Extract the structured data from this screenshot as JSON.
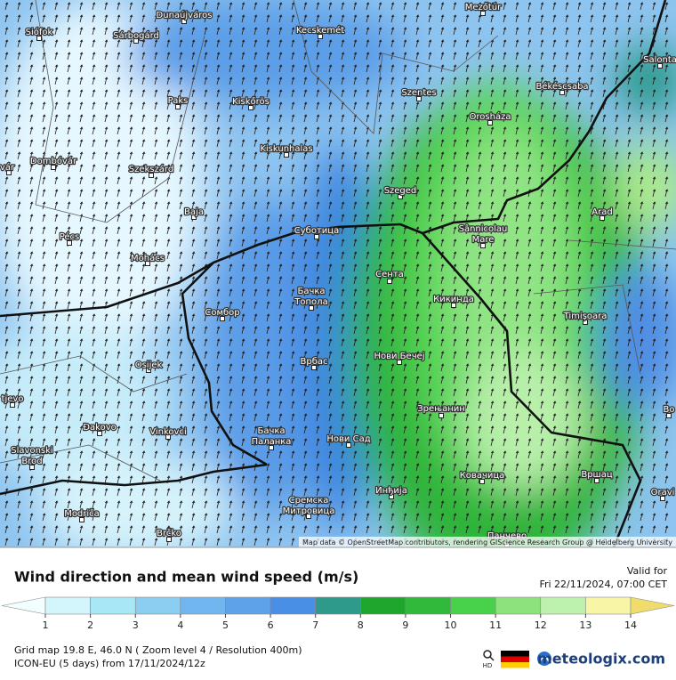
{
  "map": {
    "cities": [
      [
        "Dunaújváros"
      ],
      [
        "Mezőtúr"
      ],
      [
        "Siófok"
      ],
      [
        "Sárbogárd"
      ],
      [
        "Kecskemét"
      ],
      [
        "Salonta"
      ],
      [
        "Békéscsaba"
      ],
      [
        "Szentes"
      ],
      [
        "Paks"
      ],
      [
        "Kiskőrös"
      ],
      [
        "Orosháza"
      ],
      [
        "Kiskunhalas"
      ],
      [
        "Dombóvár"
      ],
      [
        "Szekszárd"
      ],
      [
        "vár"
      ],
      [
        "Szeged"
      ],
      [
        "Arad"
      ],
      [
        "Baja"
      ],
      [
        "Суботица"
      ],
      [
        "Sânnicolau",
        "Mare"
      ],
      [
        "Pécs"
      ],
      [
        "Mohács"
      ],
      [
        "Сента"
      ],
      [
        "Бачка",
        "Топола"
      ],
      [
        "Кикинда"
      ],
      [
        "Сомбор"
      ],
      [
        "Timișoara"
      ],
      [
        "Врбас"
      ],
      [
        "Нови Бечеј"
      ],
      [
        "Osijek"
      ],
      [
        "tjevo"
      ],
      [
        "Зрењанин"
      ],
      [
        "Bo"
      ],
      [
        "Đakovo"
      ],
      [
        "Vinkovci"
      ],
      [
        "Бачка",
        "Паланка"
      ],
      [
        "Нови Сад"
      ],
      [
        "Slavonski",
        "Brod"
      ],
      [
        "Ковачица"
      ],
      [
        "Вршац"
      ],
      [
        "Инђија"
      ],
      [
        "Oravi"
      ],
      [
        "Сремска",
        "Митровица"
      ],
      [
        "Modriča"
      ],
      [
        "Brčko"
      ],
      [
        "Панчево"
      ]
    ],
    "attribution": "Map data © OpenStreetMap contributors, rendering GIScience Research Group @ Heidelberg University"
  },
  "footer": {
    "title": "Wind direction and mean wind speed (m/s)",
    "valid_label": "Valid for",
    "valid_time": "Fri 22/11/2024, 07:00 CET",
    "legend": {
      "ticks": [
        1,
        2,
        3,
        4,
        5,
        6,
        7,
        8,
        9,
        10,
        11,
        12,
        13,
        14
      ],
      "colors": [
        "#f2feff",
        "#d2f6fb",
        "#a8e8f6",
        "#8ccdf2",
        "#72b6ef",
        "#5ea2ea",
        "#4a8fe6",
        "#2e9a8c",
        "#1fa62c",
        "#2fba3c",
        "#48d24c",
        "#8ee27e",
        "#bdf2ae",
        "#f8f6a6",
        "#f0dc6a"
      ]
    },
    "grid_info": "Grid map 19.8 E, 46.0 N ( Zoom level 4 / Resolution 400m)",
    "model_info": "ICON-EU (5 days) from 17/11/2024/12z",
    "hd": "HD",
    "brand": "meteologix.com"
  }
}
